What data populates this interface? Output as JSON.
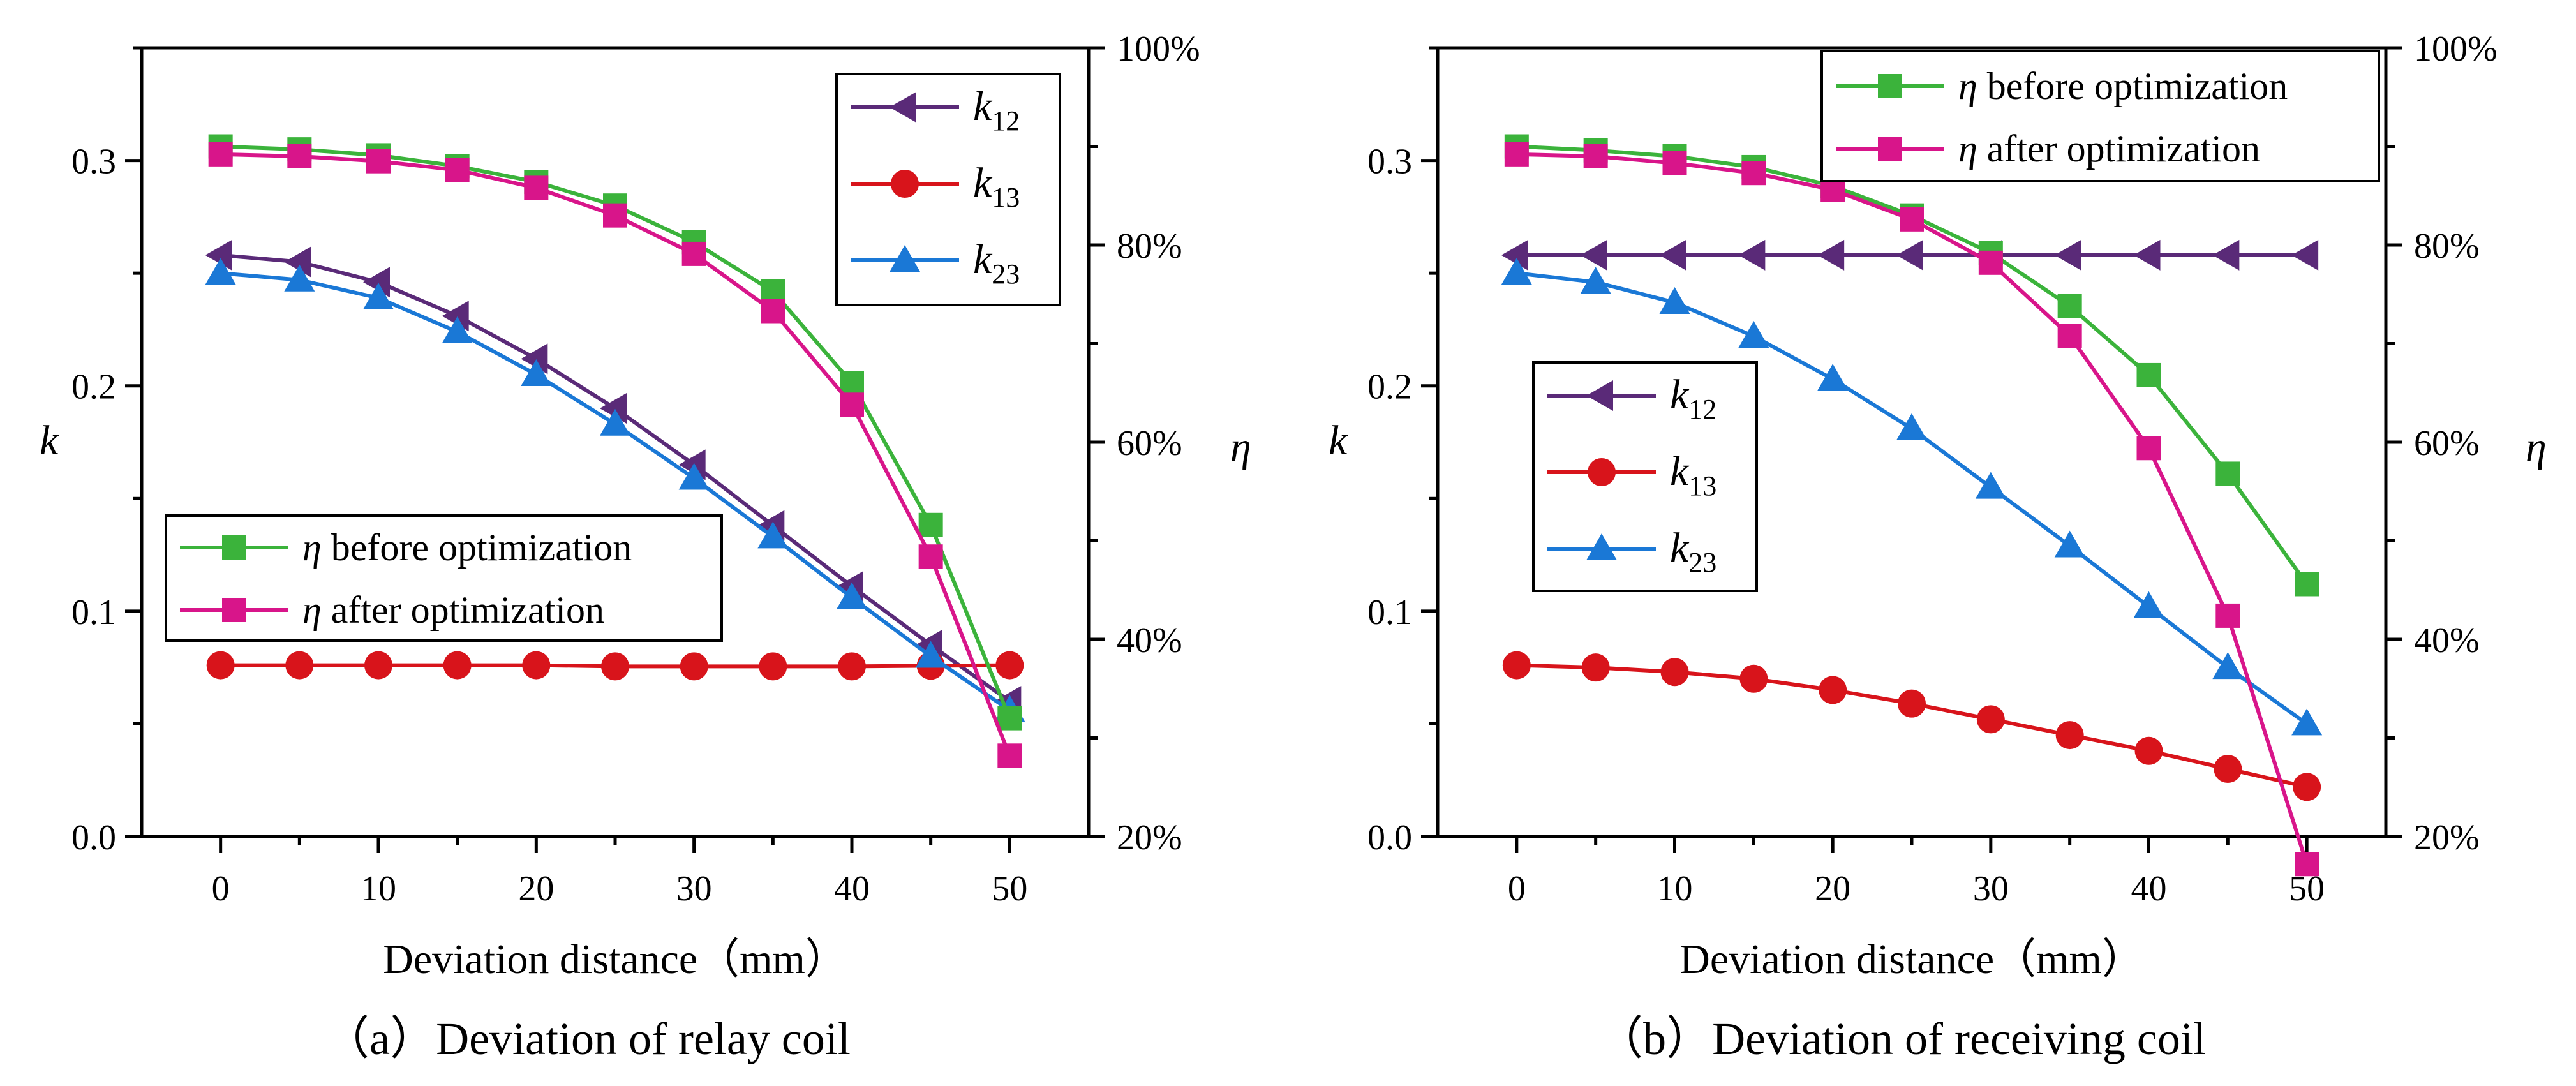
{
  "x_axis_label": "Deviation distance（mm）",
  "left_axis_label": "k",
  "right_axis_label": "η",
  "colors": {
    "k12": "#5a2a78",
    "k13": "#d8141b",
    "k23": "#1a78d6",
    "eta_before": "#3bb33b",
    "eta_after": "#d8158a"
  },
  "chart_data": [
    {
      "type": "line",
      "caption": "（a）Deviation of relay coil",
      "x": [
        0,
        5,
        10,
        15,
        20,
        25,
        30,
        35,
        40,
        45,
        50
      ],
      "x_ticks": [
        0,
        10,
        20,
        30,
        40,
        50
      ],
      "xlim": [
        -5,
        55
      ],
      "ylabel": "k",
      "ylim": [
        0,
        0.35
      ],
      "y_ticks": [
        0.0,
        0.1,
        0.2,
        0.3
      ],
      "y2label": "η",
      "y2lim": [
        20,
        100
      ],
      "y2_ticks": [
        20,
        40,
        60,
        80,
        100
      ],
      "y2_tick_suffix": "%",
      "series": [
        {
          "key": "k12",
          "name": "k",
          "subscript": "12",
          "axis": "left",
          "marker": "triangle-left",
          "values": [
            0.258,
            0.255,
            0.246,
            0.231,
            0.212,
            0.19,
            0.165,
            0.138,
            0.111,
            0.085,
            0.06
          ]
        },
        {
          "key": "k13",
          "name": "k",
          "subscript": "13",
          "axis": "left",
          "marker": "circle",
          "values": [
            0.076,
            0.076,
            0.076,
            0.076,
            0.076,
            0.0755,
            0.0755,
            0.0755,
            0.0755,
            0.0758,
            0.076
          ]
        },
        {
          "key": "k23",
          "name": "k",
          "subscript": "23",
          "axis": "left",
          "marker": "triangle-up",
          "values": [
            0.25,
            0.247,
            0.239,
            0.224,
            0.205,
            0.183,
            0.159,
            0.133,
            0.106,
            0.08,
            0.056
          ]
        },
        {
          "key": "eta_before",
          "name": "before optimization",
          "symbol": "η",
          "axis": "right",
          "marker": "square",
          "values": [
            90.0,
            89.7,
            89.1,
            88.0,
            86.4,
            84.0,
            80.3,
            75.3,
            66.0,
            51.6,
            32.0
          ]
        },
        {
          "key": "eta_after",
          "name": "after optimization",
          "symbol": "η",
          "axis": "right",
          "marker": "square",
          "values": [
            89.2,
            89.0,
            88.5,
            87.6,
            85.8,
            83.0,
            79.1,
            73.3,
            63.8,
            48.4,
            28.2
          ]
        }
      ],
      "legends": [
        {
          "position": "top-right",
          "keys": [
            "k12",
            "k13",
            "k23"
          ]
        },
        {
          "position": "lower-left",
          "keys": [
            "eta_before",
            "eta_after"
          ]
        }
      ]
    },
    {
      "type": "line",
      "caption": "（b）Deviation of receiving coil",
      "x": [
        0,
        5,
        10,
        15,
        20,
        25,
        30,
        35,
        40,
        45,
        50
      ],
      "x_ticks": [
        0,
        10,
        20,
        30,
        40,
        50
      ],
      "xlim": [
        -5,
        55
      ],
      "ylabel": "k",
      "ylim": [
        0,
        0.35
      ],
      "y_ticks": [
        0.0,
        0.1,
        0.2,
        0.3
      ],
      "y2label": "η",
      "y2lim": [
        20,
        100
      ],
      "y2_ticks": [
        20,
        40,
        60,
        80,
        100
      ],
      "y2_tick_suffix": "%",
      "series": [
        {
          "key": "k12",
          "name": "k",
          "subscript": "12",
          "axis": "left",
          "marker": "triangle-left",
          "values": [
            0.258,
            0.258,
            0.258,
            0.258,
            0.258,
            0.258,
            0.258,
            0.258,
            0.258,
            0.258,
            0.258
          ]
        },
        {
          "key": "k13",
          "name": "k",
          "subscript": "13",
          "axis": "left",
          "marker": "circle",
          "values": [
            0.076,
            0.075,
            0.073,
            0.07,
            0.065,
            0.059,
            0.052,
            0.045,
            0.038,
            0.03,
            0.022
          ]
        },
        {
          "key": "k23",
          "name": "k",
          "subscript": "23",
          "axis": "left",
          "marker": "triangle-up",
          "values": [
            0.25,
            0.246,
            0.237,
            0.222,
            0.203,
            0.181,
            0.155,
            0.129,
            0.102,
            0.075,
            0.05
          ]
        },
        {
          "key": "eta_before",
          "name": "before optimization",
          "symbol": "η",
          "axis": "right",
          "marker": "square",
          "values": [
            90.0,
            89.6,
            89.0,
            87.9,
            86.0,
            83.0,
            79.2,
            73.8,
            66.8,
            56.8,
            45.6
          ]
        },
        {
          "key": "eta_after",
          "name": "after optimization",
          "symbol": "η",
          "axis": "right",
          "marker": "square",
          "values": [
            89.2,
            89.0,
            88.3,
            87.3,
            85.6,
            82.6,
            78.2,
            70.8,
            59.4,
            42.4,
            17.2
          ]
        }
      ],
      "legends": [
        {
          "position": "top-right",
          "keys": [
            "eta_before",
            "eta_after"
          ]
        },
        {
          "position": "center-left",
          "keys": [
            "k12",
            "k13",
            "k23"
          ]
        }
      ]
    }
  ]
}
